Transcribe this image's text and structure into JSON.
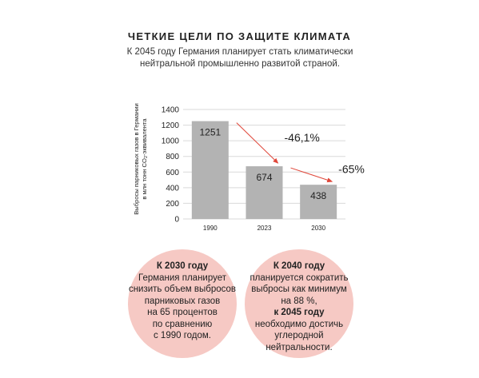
{
  "header": {
    "title": "ЧЕТКИЕ ЦЕЛИ ПО ЗАЩИТЕ КЛИМАТА",
    "subtitle_line1": "К 2045 году Германия планирует стать климатически",
    "subtitle_line2": "нейтральной промышленно развитой страной."
  },
  "chart_data": {
    "type": "bar",
    "categories": [
      "1990",
      "2023",
      "2030"
    ],
    "values": [
      1251,
      674,
      438
    ],
    "ylabel_line1": "Выбросы парниковых газов в Германии",
    "ylabel_line2_pre": "в млн тонн CO",
    "ylabel_line2_sub": "2",
    "ylabel_line2_post": "-эквивалента",
    "ylim": [
      0,
      1400
    ],
    "yticks": [
      0,
      200,
      400,
      600,
      800,
      1000,
      1200,
      1400
    ],
    "grid": true,
    "annotations": [
      {
        "from": "1990",
        "to": "2023",
        "label": "-46,1%"
      },
      {
        "from": "2023",
        "to": "2030",
        "label": "-65%"
      }
    ],
    "bar_color": "#b3b3b3",
    "grid_color": "#d9d9d9",
    "arrow_color": "#e0473a"
  },
  "bubbles": {
    "left": {
      "heading": "К 2030 году",
      "lines": [
        "Германия планирует",
        "снизить объем выбросов",
        "парниковых газов",
        "на 65 процентов",
        "по сравнению",
        "с 1990 годом."
      ]
    },
    "right": {
      "heading": "К 2040 году",
      "line1": "планируется сократить",
      "line2": "выбросы как минимум",
      "line3_pre": "на 88 %, ",
      "line3_bold": "к 2045 году",
      "line4": "необходимо достичь",
      "line5": "углеродной",
      "line6": "нейтральности."
    },
    "color": "#f6c9c4"
  }
}
